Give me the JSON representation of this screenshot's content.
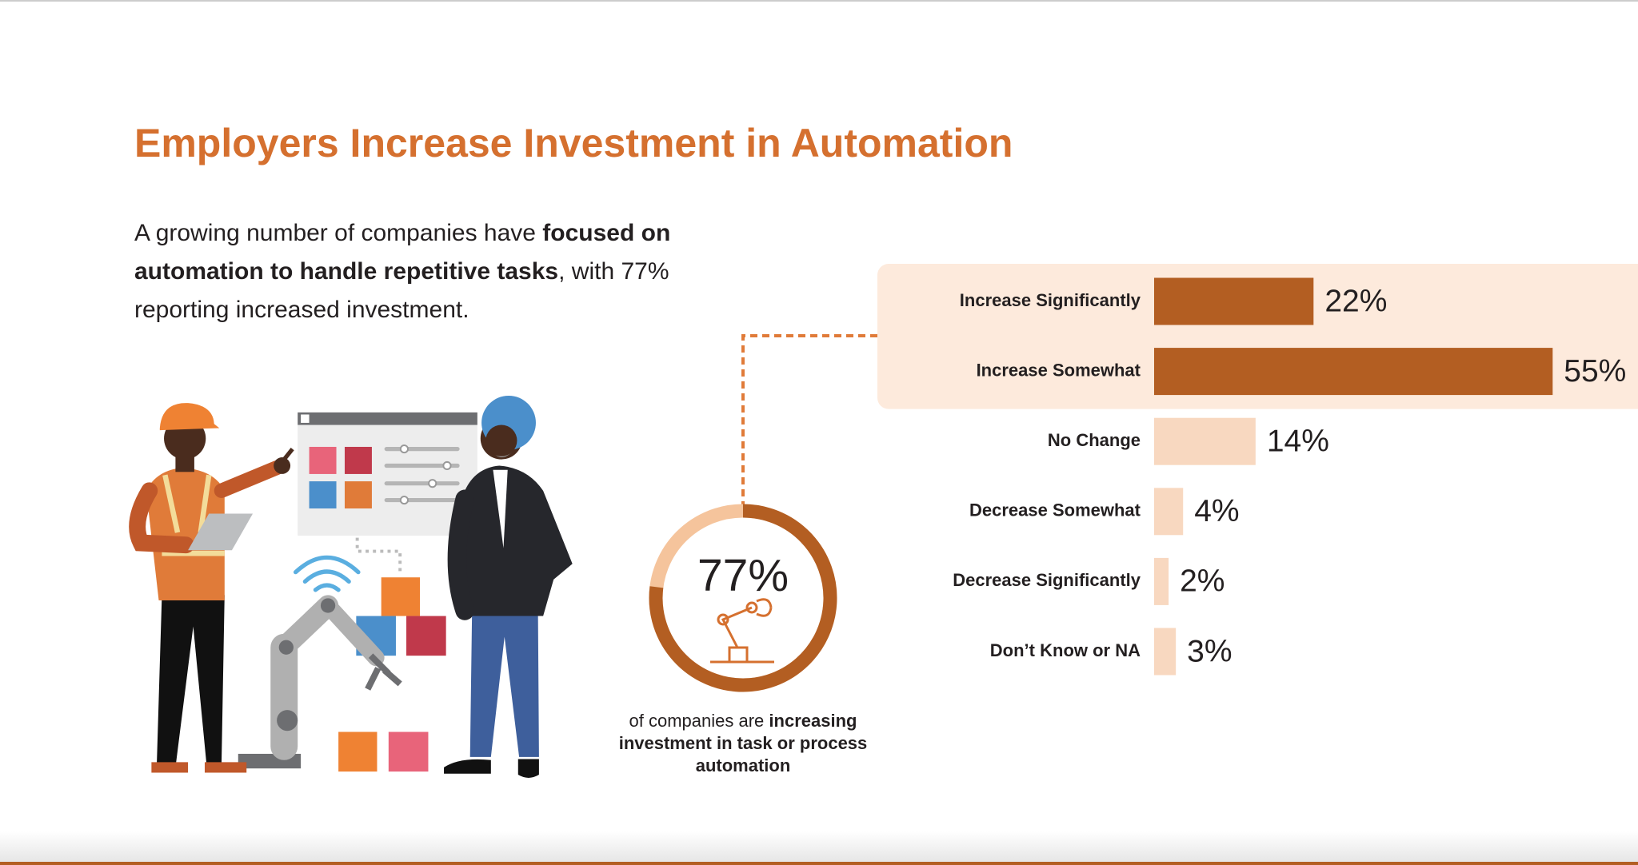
{
  "header": {
    "title": "Employers Increase Investment in Automation"
  },
  "intro": [
    "A growing number of companies have ",
    "focused on automation to handle repetitive tasks",
    ", with 77% reporting increased investment."
  ],
  "chart_data": [
    {
      "type": "bar",
      "orientation": "horizontal",
      "categories": [
        "Increase Significantly",
        "Increase Somewhat",
        "No Change",
        "Decrease Somewhat",
        "Decrease Significantly",
        "Don’t Know or NA"
      ],
      "values": [
        22,
        55,
        14,
        4,
        2,
        3
      ],
      "value_labels": [
        "22%",
        "55%",
        "14%",
        "4%",
        "2%",
        "3%"
      ],
      "colors": [
        "#b35e22",
        "#b35e22",
        "#f8d8c0",
        "#f8d8c0",
        "#f8d8c0",
        "#f8d8c0"
      ],
      "highlight_color": "#fdeadc"
    },
    {
      "type": "donut",
      "values": [
        77
      ],
      "value_labels": [
        "77%"
      ],
      "colors": [
        "#b35e22",
        "#f5c49c"
      ],
      "caption": [
        "of companies are ",
        "increasing investment in task or process automation"
      ]
    }
  ]
}
